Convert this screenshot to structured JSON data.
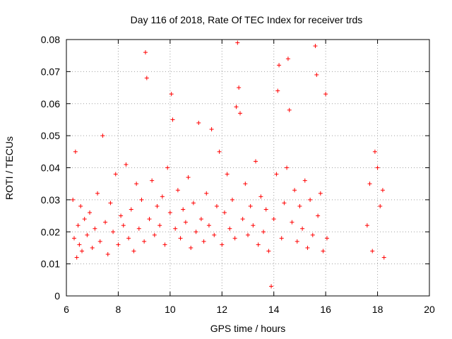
{
  "chart_data": {
    "type": "scatter",
    "title": "Day 116 of 2018, Rate Of TEC Index for receiver trds",
    "xlabel": "GPS time / hours",
    "ylabel": "ROTI / TECUs",
    "xlim": [
      6,
      20
    ],
    "ylim": [
      0,
      0.08
    ],
    "x_ticks": [
      "6",
      "8",
      "10",
      "12",
      "14",
      "16",
      "18",
      "20"
    ],
    "y_ticks": [
      "0",
      "0.01",
      "0.02",
      "0.03",
      "0.04",
      "0.05",
      "0.06",
      "0.07",
      "0.08"
    ],
    "grid": true,
    "marker": "plus",
    "series": [
      {
        "color": "#ff0000",
        "x": [
          6.25,
          6.3,
          6.35,
          6.4,
          6.45,
          6.5,
          6.55,
          6.6,
          6.7,
          6.8,
          6.9,
          7.0,
          7.1,
          7.2,
          7.3,
          7.4,
          7.5,
          7.6,
          7.7,
          7.8,
          7.9,
          8.0,
          8.1,
          8.2,
          8.3,
          8.4,
          8.5,
          8.6,
          8.7,
          8.8,
          8.9,
          9.0,
          9.05,
          9.1,
          9.2,
          9.3,
          9.4,
          9.5,
          9.6,
          9.7,
          9.8,
          9.9,
          10.0,
          10.05,
          10.1,
          10.2,
          10.3,
          10.4,
          10.5,
          10.6,
          10.7,
          10.8,
          10.9,
          11.0,
          11.1,
          11.2,
          11.3,
          11.4,
          11.5,
          11.6,
          11.7,
          11.8,
          11.9,
          12.0,
          12.1,
          12.2,
          12.3,
          12.4,
          12.5,
          12.55,
          12.6,
          12.65,
          12.7,
          12.8,
          12.9,
          13.0,
          13.1,
          13.2,
          13.3,
          13.4,
          13.5,
          13.6,
          13.7,
          13.8,
          13.9,
          14.0,
          14.1,
          14.15,
          14.2,
          14.3,
          14.4,
          14.5,
          14.55,
          14.6,
          14.7,
          14.8,
          14.9,
          15.0,
          15.1,
          15.2,
          15.3,
          15.4,
          15.5,
          15.6,
          15.65,
          15.7,
          15.8,
          15.9,
          16.0,
          16.05,
          17.6,
          17.7,
          17.8,
          17.9,
          18.0,
          18.1,
          18.2,
          18.25
        ],
        "y": [
          0.03,
          0.018,
          0.045,
          0.012,
          0.022,
          0.016,
          0.028,
          0.014,
          0.024,
          0.019,
          0.026,
          0.015,
          0.021,
          0.032,
          0.017,
          0.05,
          0.023,
          0.013,
          0.029,
          0.02,
          0.038,
          0.016,
          0.025,
          0.022,
          0.041,
          0.018,
          0.027,
          0.014,
          0.035,
          0.021,
          0.03,
          0.017,
          0.076,
          0.068,
          0.024,
          0.036,
          0.019,
          0.028,
          0.022,
          0.031,
          0.016,
          0.04,
          0.026,
          0.063,
          0.055,
          0.021,
          0.033,
          0.018,
          0.027,
          0.023,
          0.037,
          0.015,
          0.029,
          0.02,
          0.054,
          0.024,
          0.017,
          0.032,
          0.022,
          0.052,
          0.019,
          0.028,
          0.045,
          0.016,
          0.026,
          0.038,
          0.021,
          0.03,
          0.018,
          0.059,
          0.079,
          0.065,
          0.057,
          0.024,
          0.035,
          0.019,
          0.028,
          0.022,
          0.042,
          0.016,
          0.031,
          0.02,
          0.027,
          0.014,
          0.003,
          0.024,
          0.038,
          0.064,
          0.072,
          0.018,
          0.029,
          0.04,
          0.074,
          0.058,
          0.023,
          0.033,
          0.017,
          0.028,
          0.021,
          0.036,
          0.015,
          0.03,
          0.019,
          0.078,
          0.069,
          0.025,
          0.032,
          0.014,
          0.063,
          0.018,
          0.022,
          0.035,
          0.014,
          0.045,
          0.04,
          0.028,
          0.033,
          0.012
        ]
      }
    ]
  }
}
